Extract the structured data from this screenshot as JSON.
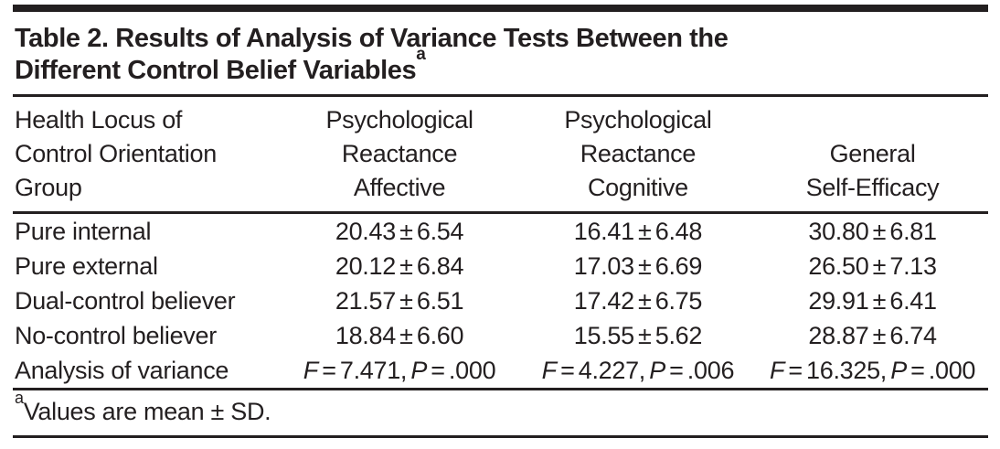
{
  "table": {
    "title_lines": [
      "Table 2. Results of Analysis of Variance Tests Between the",
      "Different Control Belief Variables"
    ],
    "title_superscript": "a",
    "columns": [
      {
        "lines": [
          "Health Locus of",
          "Control Orientation",
          "Group"
        ]
      },
      {
        "lines": [
          "Psychological",
          "Reactance",
          "Affective"
        ]
      },
      {
        "lines": [
          "Psychological",
          "Reactance",
          "Cognitive"
        ]
      },
      {
        "lines": [
          "General",
          "Self-Efficacy"
        ]
      }
    ],
    "rows": [
      {
        "label": "Pure internal",
        "values": [
          "20.43 ± 6.54",
          "16.41 ± 6.48",
          "30.80 ± 6.81"
        ]
      },
      {
        "label": "Pure external",
        "values": [
          "20.12 ± 6.84",
          "17.03 ± 6.69",
          "26.50 ± 7.13"
        ]
      },
      {
        "label": "Dual-control believer",
        "values": [
          "21.57 ± 6.51",
          "17.42 ± 6.75",
          "29.91 ± 6.41"
        ]
      },
      {
        "label": "No-control believer",
        "values": [
          "18.84 ± 6.60",
          "15.55 ± 5.62",
          "28.87 ± 6.74"
        ]
      }
    ],
    "anova": {
      "label": "Analysis of variance",
      "cells": [
        {
          "f_var": "F",
          "f_val": " = 7.471, ",
          "p_var": "P",
          "p_val": " = .000"
        },
        {
          "f_var": "F",
          "f_val": " = 4.227, ",
          "p_var": "P",
          "p_val": " = .006"
        },
        {
          "f_var": "F",
          "f_val": " = 16.325, ",
          "p_var": "P",
          "p_val": " = .000"
        }
      ]
    },
    "footnote": {
      "superscript": "a",
      "text": "Values are mean ± SD."
    },
    "colors": {
      "text": "#231f20",
      "rule": "#231f20",
      "background": "#ffffff"
    }
  }
}
